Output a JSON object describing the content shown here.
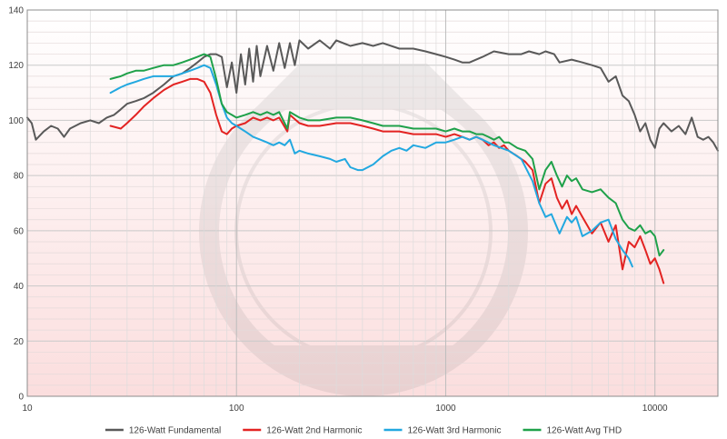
{
  "chart_data": {
    "type": "line",
    "x_scale": "log",
    "xlim": [
      10,
      20000
    ],
    "ylim": [
      0,
      140
    ],
    "grid": true,
    "legend_position": "bottom",
    "x_tick_labels": [
      "10",
      "100",
      "1000",
      "10000"
    ],
    "x_tick_values": [
      10,
      100,
      1000,
      10000
    ],
    "y_tick_labels": [
      "0",
      "20",
      "40",
      "60",
      "80",
      "100",
      "120",
      "140"
    ],
    "y_tick_values": [
      0,
      20,
      40,
      60,
      80,
      100,
      120,
      140
    ],
    "series": [
      {
        "name": "126-Watt Fundamental",
        "color": "#595959",
        "points": [
          [
            10,
            101
          ],
          [
            10.5,
            99
          ],
          [
            11,
            93
          ],
          [
            12,
            96
          ],
          [
            13,
            98
          ],
          [
            14,
            97
          ],
          [
            15,
            94
          ],
          [
            16,
            97
          ],
          [
            18,
            99
          ],
          [
            20,
            100
          ],
          [
            22,
            99
          ],
          [
            24,
            101
          ],
          [
            26,
            102
          ],
          [
            28,
            104
          ],
          [
            30,
            106
          ],
          [
            33,
            107
          ],
          [
            36,
            108
          ],
          [
            40,
            110
          ],
          [
            45,
            113
          ],
          [
            50,
            116
          ],
          [
            55,
            117
          ],
          [
            60,
            119
          ],
          [
            65,
            121
          ],
          [
            70,
            123
          ],
          [
            75,
            124
          ],
          [
            80,
            124
          ],
          [
            85,
            123
          ],
          [
            90,
            112
          ],
          [
            95,
            121
          ],
          [
            100,
            110
          ],
          [
            105,
            124
          ],
          [
            110,
            113
          ],
          [
            115,
            126
          ],
          [
            120,
            114
          ],
          [
            125,
            127
          ],
          [
            130,
            116
          ],
          [
            140,
            127
          ],
          [
            150,
            118
          ],
          [
            160,
            128
          ],
          [
            170,
            119
          ],
          [
            180,
            128
          ],
          [
            190,
            120
          ],
          [
            200,
            129
          ],
          [
            220,
            126
          ],
          [
            250,
            129
          ],
          [
            280,
            126
          ],
          [
            300,
            129
          ],
          [
            350,
            127
          ],
          [
            400,
            128
          ],
          [
            450,
            127
          ],
          [
            500,
            128
          ],
          [
            600,
            126
          ],
          [
            700,
            126
          ],
          [
            800,
            125
          ],
          [
            900,
            124
          ],
          [
            1000,
            123
          ],
          [
            1100,
            122
          ],
          [
            1200,
            121
          ],
          [
            1300,
            121
          ],
          [
            1500,
            123
          ],
          [
            1700,
            125
          ],
          [
            2000,
            124
          ],
          [
            2300,
            124
          ],
          [
            2500,
            125
          ],
          [
            2800,
            124
          ],
          [
            3000,
            125
          ],
          [
            3300,
            124
          ],
          [
            3500,
            121
          ],
          [
            4000,
            122
          ],
          [
            4500,
            121
          ],
          [
            5000,
            120
          ],
          [
            5500,
            119
          ],
          [
            6000,
            114
          ],
          [
            6500,
            116
          ],
          [
            7000,
            109
          ],
          [
            7500,
            107
          ],
          [
            8000,
            102
          ],
          [
            8500,
            96
          ],
          [
            9000,
            99
          ],
          [
            9500,
            93
          ],
          [
            10000,
            90
          ],
          [
            10500,
            97
          ],
          [
            11000,
            99
          ],
          [
            12000,
            96
          ],
          [
            13000,
            98
          ],
          [
            14000,
            95
          ],
          [
            15000,
            101
          ],
          [
            16000,
            94
          ],
          [
            17000,
            93
          ],
          [
            18000,
            94
          ],
          [
            19000,
            92
          ],
          [
            20000,
            89
          ]
        ]
      },
      {
        "name": "126-Watt 2nd Harmonic",
        "color": "#e32322",
        "points": [
          [
            25,
            98
          ],
          [
            28,
            97
          ],
          [
            30,
            99
          ],
          [
            33,
            102
          ],
          [
            36,
            105
          ],
          [
            40,
            108
          ],
          [
            45,
            111
          ],
          [
            50,
            113
          ],
          [
            55,
            114
          ],
          [
            60,
            115
          ],
          [
            65,
            115
          ],
          [
            70,
            114
          ],
          [
            75,
            110
          ],
          [
            80,
            102
          ],
          [
            85,
            96
          ],
          [
            90,
            95
          ],
          [
            95,
            97
          ],
          [
            100,
            98
          ],
          [
            110,
            99
          ],
          [
            120,
            101
          ],
          [
            130,
            100
          ],
          [
            140,
            101
          ],
          [
            150,
            100
          ],
          [
            160,
            101
          ],
          [
            175,
            96
          ],
          [
            180,
            102
          ],
          [
            200,
            99
          ],
          [
            220,
            98
          ],
          [
            250,
            98
          ],
          [
            300,
            99
          ],
          [
            350,
            99
          ],
          [
            400,
            98
          ],
          [
            450,
            97
          ],
          [
            500,
            96
          ],
          [
            600,
            96
          ],
          [
            700,
            95
          ],
          [
            800,
            95
          ],
          [
            900,
            95
          ],
          [
            1000,
            94
          ],
          [
            1100,
            95
          ],
          [
            1200,
            94
          ],
          [
            1300,
            93
          ],
          [
            1400,
            94
          ],
          [
            1500,
            93
          ],
          [
            1600,
            91
          ],
          [
            1700,
            92
          ],
          [
            1800,
            90
          ],
          [
            1900,
            91
          ],
          [
            2000,
            89
          ],
          [
            2200,
            87
          ],
          [
            2400,
            85
          ],
          [
            2600,
            82
          ],
          [
            2800,
            70
          ],
          [
            3000,
            77
          ],
          [
            3200,
            79
          ],
          [
            3400,
            72
          ],
          [
            3600,
            68
          ],
          [
            3800,
            71
          ],
          [
            4000,
            66
          ],
          [
            4200,
            69
          ],
          [
            4500,
            65
          ],
          [
            5000,
            59
          ],
          [
            5500,
            63
          ],
          [
            6000,
            56
          ],
          [
            6500,
            62
          ],
          [
            7000,
            46
          ],
          [
            7500,
            56
          ],
          [
            8000,
            54
          ],
          [
            8500,
            58
          ],
          [
            9000,
            53
          ],
          [
            9500,
            48
          ],
          [
            10000,
            50
          ],
          [
            10500,
            46
          ],
          [
            11000,
            41
          ]
        ]
      },
      {
        "name": "126-Watt 3rd Harmonic",
        "color": "#22a8e0",
        "points": [
          [
            25,
            110
          ],
          [
            28,
            112
          ],
          [
            30,
            113
          ],
          [
            33,
            114
          ],
          [
            36,
            115
          ],
          [
            40,
            116
          ],
          [
            45,
            116
          ],
          [
            50,
            116
          ],
          [
            55,
            117
          ],
          [
            60,
            118
          ],
          [
            65,
            119
          ],
          [
            70,
            120
          ],
          [
            75,
            119
          ],
          [
            80,
            113
          ],
          [
            85,
            106
          ],
          [
            90,
            101
          ],
          [
            95,
            99
          ],
          [
            100,
            98
          ],
          [
            110,
            96
          ],
          [
            120,
            94
          ],
          [
            130,
            93
          ],
          [
            140,
            92
          ],
          [
            150,
            91
          ],
          [
            160,
            92
          ],
          [
            170,
            91
          ],
          [
            180,
            93
          ],
          [
            190,
            88
          ],
          [
            200,
            89
          ],
          [
            220,
            88
          ],
          [
            250,
            87
          ],
          [
            280,
            86
          ],
          [
            300,
            85
          ],
          [
            330,
            86
          ],
          [
            350,
            83
          ],
          [
            380,
            82
          ],
          [
            400,
            82
          ],
          [
            450,
            84
          ],
          [
            500,
            87
          ],
          [
            550,
            89
          ],
          [
            600,
            90
          ],
          [
            650,
            89
          ],
          [
            700,
            91
          ],
          [
            800,
            90
          ],
          [
            900,
            92
          ],
          [
            1000,
            92
          ],
          [
            1100,
            93
          ],
          [
            1200,
            94
          ],
          [
            1300,
            93
          ],
          [
            1400,
            94
          ],
          [
            1500,
            93
          ],
          [
            1700,
            91
          ],
          [
            2000,
            89
          ],
          [
            2300,
            86
          ],
          [
            2600,
            78
          ],
          [
            2800,
            70
          ],
          [
            3000,
            65
          ],
          [
            3200,
            66
          ],
          [
            3500,
            59
          ],
          [
            3800,
            65
          ],
          [
            4000,
            63
          ],
          [
            4200,
            65
          ],
          [
            4500,
            58
          ],
          [
            5000,
            60
          ],
          [
            5500,
            63
          ],
          [
            6000,
            64
          ],
          [
            6500,
            57
          ],
          [
            7000,
            53
          ],
          [
            7500,
            50
          ],
          [
            7800,
            47
          ]
        ]
      },
      {
        "name": "126-Watt Avg THD",
        "color": "#1fa14a",
        "points": [
          [
            25,
            115
          ],
          [
            28,
            116
          ],
          [
            30,
            117
          ],
          [
            33,
            118
          ],
          [
            36,
            118
          ],
          [
            40,
            119
          ],
          [
            45,
            120
          ],
          [
            50,
            120
          ],
          [
            55,
            121
          ],
          [
            60,
            122
          ],
          [
            65,
            123
          ],
          [
            70,
            124
          ],
          [
            75,
            123
          ],
          [
            80,
            115
          ],
          [
            85,
            106
          ],
          [
            90,
            103
          ],
          [
            95,
            102
          ],
          [
            100,
            101
          ],
          [
            110,
            102
          ],
          [
            120,
            103
          ],
          [
            130,
            102
          ],
          [
            140,
            103
          ],
          [
            150,
            102
          ],
          [
            160,
            103
          ],
          [
            175,
            97
          ],
          [
            180,
            103
          ],
          [
            200,
            101
          ],
          [
            220,
            100
          ],
          [
            250,
            100
          ],
          [
            300,
            101
          ],
          [
            350,
            101
          ],
          [
            400,
            100
          ],
          [
            450,
            99
          ],
          [
            500,
            98
          ],
          [
            600,
            98
          ],
          [
            700,
            97
          ],
          [
            800,
            97
          ],
          [
            900,
            97
          ],
          [
            1000,
            96
          ],
          [
            1100,
            97
          ],
          [
            1200,
            96
          ],
          [
            1300,
            96
          ],
          [
            1400,
            95
          ],
          [
            1500,
            95
          ],
          [
            1600,
            94
          ],
          [
            1700,
            93
          ],
          [
            1800,
            94
          ],
          [
            1900,
            92
          ],
          [
            2000,
            92
          ],
          [
            2200,
            90
          ],
          [
            2400,
            89
          ],
          [
            2600,
            86
          ],
          [
            2800,
            75
          ],
          [
            3000,
            82
          ],
          [
            3200,
            85
          ],
          [
            3400,
            80
          ],
          [
            3600,
            76
          ],
          [
            3800,
            80
          ],
          [
            4000,
            78
          ],
          [
            4200,
            79
          ],
          [
            4500,
            75
          ],
          [
            5000,
            74
          ],
          [
            5500,
            75
          ],
          [
            6000,
            72
          ],
          [
            6500,
            70
          ],
          [
            7000,
            64
          ],
          [
            7500,
            61
          ],
          [
            8000,
            60
          ],
          [
            8500,
            62
          ],
          [
            9000,
            59
          ],
          [
            9500,
            60
          ],
          [
            10000,
            58
          ],
          [
            10500,
            51
          ],
          [
            11000,
            53
          ]
        ]
      }
    ]
  }
}
